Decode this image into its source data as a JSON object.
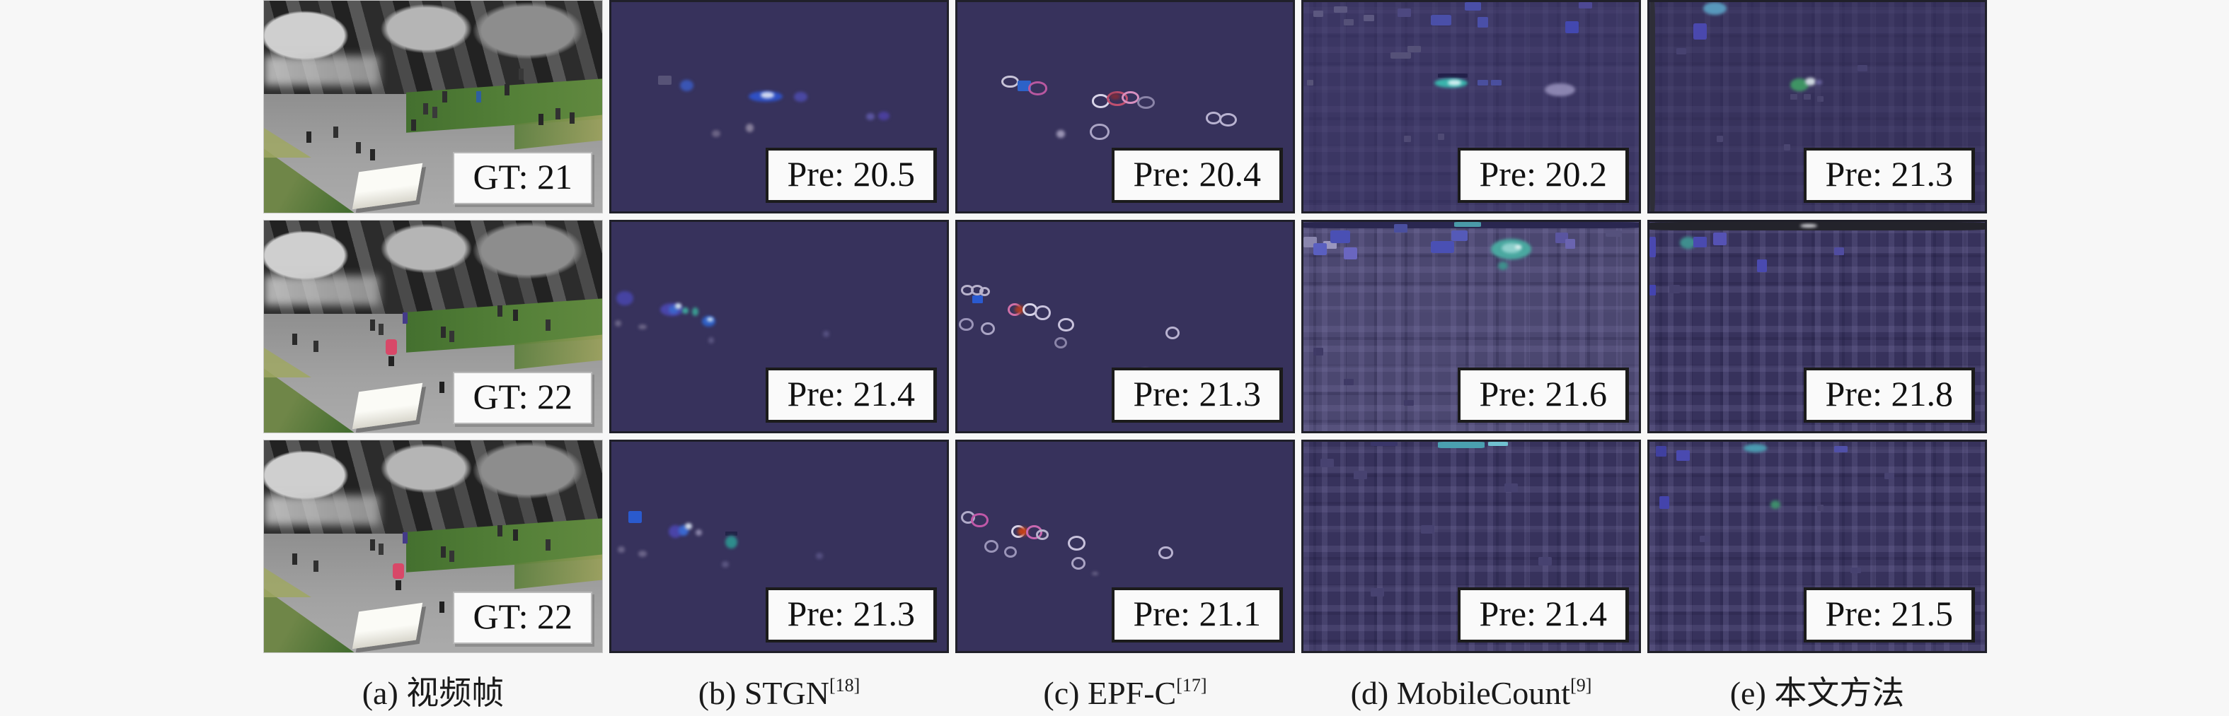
{
  "columns": [
    {
      "id": "a",
      "caption": "(a) 视频帧",
      "ref": ""
    },
    {
      "id": "b",
      "caption": "(b) STGN",
      "ref": "[18]"
    },
    {
      "id": "c",
      "caption": "(c) EPF-C",
      "ref": "[17]"
    },
    {
      "id": "d",
      "caption": "(d) MobileCount",
      "ref": "[9]"
    },
    {
      "id": "e",
      "caption": "(e) 本文方法",
      "ref": ""
    }
  ],
  "rows": [
    {
      "labels": {
        "a": "GT: 21",
        "b": "Pre: 20.5",
        "c": "Pre: 20.4",
        "d": "Pre: 20.2",
        "e": "Pre: 21.3"
      }
    },
    {
      "labels": {
        "a": "GT: 22",
        "b": "Pre: 21.4",
        "c": "Pre: 21.3",
        "d": "Pre: 21.6",
        "e": "Pre: 21.8"
      }
    },
    {
      "labels": {
        "a": "GT: 22",
        "b": "Pre: 21.3",
        "c": "Pre: 21.1",
        "d": "Pre: 21.4",
        "e": "Pre: 21.5"
      }
    }
  ],
  "colors": {
    "page_bg": "#f7f7f7",
    "density_bg": "#37325c",
    "density_bg_light": "#4b4770",
    "label_box_bg": "#fafafa",
    "label_text": "#111111",
    "caption_text": "#1a1a1a"
  },
  "blobs": {
    "b1": [
      [
        14,
        35,
        4,
        4.5,
        "#575377",
        "k"
      ],
      [
        20.5,
        37,
        4,
        5.5,
        "#3a55b4",
        "b"
      ],
      [
        41,
        42.5,
        10,
        5,
        "#2f50c4",
        "b"
      ],
      [
        44.5,
        43,
        4,
        3,
        "#d0d8f0",
        "b"
      ],
      [
        54.5,
        43,
        4,
        4.5,
        "#4a48a2",
        "b"
      ],
      [
        30,
        61,
        2.5,
        3.5,
        "#6b6384",
        "b"
      ],
      [
        40,
        58,
        2.5,
        4,
        "#867e9a",
        "b"
      ],
      [
        76,
        53,
        2.5,
        3.5,
        "#5a55a0",
        "b"
      ],
      [
        79.5,
        52.5,
        3.5,
        4,
        "#4a3f9c",
        "b"
      ]
    ],
    "c1": [
      [
        13,
        35,
        4,
        4,
        "#c8c4d8",
        "r"
      ],
      [
        18,
        37.5,
        4,
        5,
        "#2d62c8",
        "k"
      ],
      [
        21,
        38,
        4.5,
        4.5,
        "#b858a0",
        "r"
      ],
      [
        40,
        44,
        4,
        4.5,
        "#d8d4e8",
        "r"
      ],
      [
        44.5,
        42.5,
        5,
        5,
        "#c05070",
        "r"
      ],
      [
        45.5,
        43.5,
        3,
        3,
        "#7c2c3c",
        "b"
      ],
      [
        49,
        42.5,
        4,
        4,
        "#d890c0",
        "r"
      ],
      [
        53.5,
        45,
        4,
        4,
        "#8a84a8",
        "r"
      ],
      [
        29.5,
        61,
        2.5,
        4,
        "#9a94b4",
        "b"
      ],
      [
        39.5,
        58,
        4.5,
        6,
        "#aaa4c4",
        "r"
      ],
      [
        74,
        52.5,
        3.5,
        4,
        "#b8b2d0",
        "r"
      ],
      [
        78,
        53,
        4,
        4.5,
        "#b8b2d0",
        "r"
      ]
    ],
    "d1": [
      [
        3,
        4,
        3,
        3,
        "#5c5880",
        "k"
      ],
      [
        9,
        2,
        4,
        3,
        "#5c5880",
        "k"
      ],
      [
        12,
        8,
        3,
        3,
        "#555178",
        "k"
      ],
      [
        18,
        6,
        3,
        3,
        "#5c5880",
        "k"
      ],
      [
        28,
        3,
        4,
        4,
        "#4d4880",
        "k"
      ],
      [
        38,
        6,
        6,
        5,
        "#4a4fa8",
        "k"
      ],
      [
        48,
        0,
        5,
        4,
        "#4a4fa8",
        "k"
      ],
      [
        52,
        7,
        3,
        5,
        "#4a4fa8",
        "k"
      ],
      [
        78,
        9,
        4,
        6,
        "#4348b0",
        "k"
      ],
      [
        82,
        0,
        4,
        3,
        "#4d4894",
        "k"
      ],
      [
        26,
        24,
        6,
        3,
        "#555178",
        "k"
      ],
      [
        31,
        21,
        4,
        3,
        "#555178",
        "k"
      ],
      [
        40,
        34,
        9,
        2,
        "#23204a",
        "k"
      ],
      [
        39,
        36.5,
        10,
        4.5,
        "#3ab4ac",
        "b"
      ],
      [
        43,
        37,
        4,
        3,
        "#cfeef0",
        "b"
      ],
      [
        52,
        37,
        3,
        3,
        "#4a4f9e",
        "k"
      ],
      [
        56,
        37,
        3,
        3,
        "#4a4f9e",
        "k"
      ],
      [
        72,
        39,
        9,
        6,
        "#8b85b0",
        "b"
      ],
      [
        1,
        37,
        2,
        3,
        "#575378",
        "k"
      ],
      [
        30,
        64,
        2,
        3,
        "#4f4a74",
        "k"
      ],
      [
        40,
        63,
        2,
        3,
        "#4f4a74",
        "k"
      ]
    ],
    "e1": [
      [
        0,
        0,
        1.6,
        100,
        "#2e2e38",
        "k"
      ],
      [
        16,
        0,
        7,
        6,
        "#5898bc",
        "b"
      ],
      [
        13,
        10,
        4,
        8,
        "#4a48ae",
        "k"
      ],
      [
        42,
        36.5,
        5.5,
        6,
        "#3f9464",
        "b"
      ],
      [
        46.5,
        36,
        3,
        4,
        "#cfd8e0",
        "b"
      ],
      [
        49.5,
        37,
        2,
        2.5,
        "#6a64a0",
        "b"
      ],
      [
        42,
        44,
        2,
        2.5,
        "#49446e",
        "k"
      ],
      [
        46,
        44,
        2,
        2.5,
        "#49446e",
        "k"
      ],
      [
        50,
        45,
        2,
        2.5,
        "#49446e",
        "k"
      ],
      [
        8,
        22,
        3,
        3,
        "#474270",
        "k"
      ],
      [
        62,
        30,
        3,
        3,
        "#474270",
        "k"
      ],
      [
        20,
        64,
        2,
        3,
        "#4a4570",
        "k"
      ],
      [
        40,
        68,
        2,
        3,
        "#4a4570",
        "k"
      ]
    ],
    "b2": [
      [
        1.5,
        33,
        5,
        7,
        "#4643a2",
        "b"
      ],
      [
        14.5,
        39,
        7,
        6,
        "#4a46aa",
        "b"
      ],
      [
        17,
        40,
        3,
        4,
        "#3c66cc",
        "b"
      ],
      [
        19,
        39,
        1.8,
        2.4,
        "#cfe0e8",
        "b"
      ],
      [
        21,
        41,
        2,
        3,
        "#3fa89c",
        "b"
      ],
      [
        24,
        41,
        2,
        4,
        "#3a9a90",
        "b"
      ],
      [
        27,
        45,
        4,
        5,
        "#2f60c6",
        "b"
      ],
      [
        28.5,
        45.5,
        1.8,
        2.2,
        "#cfe0f0",
        "b"
      ],
      [
        1,
        47,
        2,
        3,
        "#6a6486",
        "b"
      ],
      [
        8,
        49,
        2.5,
        2.5,
        "#6a6486",
        "b"
      ],
      [
        29,
        55,
        1.6,
        3,
        "#5a5580",
        "b"
      ],
      [
        63,
        52,
        2,
        3,
        "#555080",
        "b"
      ]
    ],
    "c2": [
      [
        1,
        30,
        2.5,
        3,
        "#b8b2cc",
        "r"
      ],
      [
        4,
        30,
        2.5,
        3,
        "#b8b2cc",
        "r"
      ],
      [
        6.5,
        31,
        2,
        2.5,
        "#b8b2cc",
        "r"
      ],
      [
        4.5,
        35,
        3,
        4,
        "#2a5ad0",
        "k"
      ],
      [
        15,
        39,
        3,
        4,
        "#d070a8",
        "r"
      ],
      [
        17,
        40,
        3,
        4,
        "#a83c28",
        "b"
      ],
      [
        19.5,
        39,
        3,
        4,
        "#d8d4e8",
        "r"
      ],
      [
        23,
        40,
        3.5,
        5,
        "#c8c2dc",
        "r"
      ],
      [
        30,
        46,
        3.5,
        4.5,
        "#c8c2dc",
        "r"
      ],
      [
        0.5,
        46,
        3,
        4,
        "#9a94b8",
        "r"
      ],
      [
        7,
        48,
        3,
        4,
        "#aaa4c4",
        "r"
      ],
      [
        29,
        55,
        2.5,
        3.5,
        "#8a84a8",
        "r"
      ],
      [
        62,
        50,
        3,
        4,
        "#b8b2d0",
        "r"
      ],
      [
        55,
        70,
        2,
        2,
        "#6a6488",
        "b"
      ]
    ],
    "d2": [
      [
        0,
        0,
        100,
        3,
        "#2a2750",
        "k"
      ],
      [
        0,
        7,
        4,
        5,
        "#8a86ae",
        "k"
      ],
      [
        6,
        9,
        4,
        4,
        "#9a96be",
        "k"
      ],
      [
        8,
        4,
        6,
        6,
        "#4a50b4",
        "k"
      ],
      [
        3,
        10,
        4,
        6,
        "#5a5fc0",
        "k"
      ],
      [
        12,
        12,
        4,
        6,
        "#6a66c0",
        "k"
      ],
      [
        27,
        1,
        4,
        4,
        "#4a4f9e",
        "k"
      ],
      [
        38,
        9,
        7,
        6,
        "#4a50b4",
        "k"
      ],
      [
        44,
        4,
        5,
        5,
        "#555ab8",
        "k"
      ],
      [
        45,
        0,
        8,
        2.5,
        "#4a9aa8",
        "k"
      ],
      [
        56,
        8,
        12,
        10,
        "#4aa8a0",
        "b"
      ],
      [
        59,
        10,
        6,
        5,
        "#8fd0cc",
        "b"
      ],
      [
        63,
        11,
        2,
        2,
        "#e8f4f4",
        "b"
      ],
      [
        58,
        19,
        3,
        4,
        "#3f8e8c",
        "b"
      ],
      [
        75,
        5,
        4,
        5,
        "#5a55a0",
        "k"
      ],
      [
        78,
        8,
        3,
        5,
        "#6a64b0",
        "k"
      ],
      [
        90,
        4,
        5,
        3,
        "#55517c",
        "k"
      ],
      [
        3,
        60,
        3,
        4,
        "#3f3a66",
        "k"
      ],
      [
        12,
        75,
        3,
        3,
        "#3f3a66",
        "k"
      ],
      [
        30,
        85,
        3,
        3,
        "#3f3a66",
        "k"
      ]
    ],
    "e2": [
      [
        0,
        0,
        100,
        4,
        "#23232b",
        "k"
      ],
      [
        9,
        7,
        5,
        6,
        "#3f8e8e",
        "b"
      ],
      [
        13,
        7,
        4,
        5,
        "#4a4ab0",
        "k"
      ],
      [
        19,
        5,
        4,
        6,
        "#5552b4",
        "k"
      ],
      [
        0,
        7,
        2,
        10,
        "#4a48b0",
        "k"
      ],
      [
        45,
        1,
        5,
        1.8,
        "#d8d8dc",
        "b"
      ],
      [
        32,
        18,
        3,
        6,
        "#4a4ab0",
        "k"
      ],
      [
        55,
        12,
        3,
        4,
        "#504ca0",
        "k"
      ],
      [
        0,
        30,
        2,
        5,
        "#4444b0",
        "k"
      ],
      [
        6,
        30,
        3,
        4,
        "#45406c",
        "k"
      ]
    ],
    "b3": [
      [
        5,
        33,
        4,
        6,
        "#2a5ace",
        "k"
      ],
      [
        17,
        40,
        4,
        6,
        "#4a44a8",
        "b"
      ],
      [
        20,
        40,
        3,
        5,
        "#3a68d0",
        "b"
      ],
      [
        22,
        39,
        2,
        3,
        "#d0d8e8",
        "b"
      ],
      [
        25,
        42,
        2,
        3,
        "#8a84a8",
        "b"
      ],
      [
        34,
        43,
        3.5,
        2,
        "#222448",
        "k"
      ],
      [
        34,
        45,
        3.5,
        6,
        "#2e8c8c",
        "b"
      ],
      [
        2,
        50,
        2,
        3,
        "#6a6488",
        "b"
      ],
      [
        8,
        52,
        2.5,
        3,
        "#6a6488",
        "b"
      ],
      [
        33,
        57,
        2,
        3,
        "#5a5580",
        "b"
      ],
      [
        61,
        53,
        2,
        3,
        "#555080",
        "b"
      ]
    ],
    "c3": [
      [
        1,
        33,
        3,
        4,
        "#b0aac8",
        "r"
      ],
      [
        4,
        34,
        4,
        5,
        "#c058a8",
        "r"
      ],
      [
        16,
        40,
        3,
        4,
        "#d8d4e8",
        "r"
      ],
      [
        18,
        41,
        3,
        4,
        "#c04018",
        "b"
      ],
      [
        20.5,
        40,
        3.5,
        4.5,
        "#c868b0",
        "r"
      ],
      [
        23.5,
        42,
        2.5,
        3,
        "#b8b2cc",
        "r"
      ],
      [
        33,
        45,
        4,
        5,
        "#c8c2dc",
        "r"
      ],
      [
        34,
        55,
        3,
        4,
        "#aaa4c4",
        "r"
      ],
      [
        8,
        47,
        3,
        4,
        "#9a94b8",
        "r"
      ],
      [
        14,
        50,
        2.5,
        3.5,
        "#9a94b8",
        "r"
      ],
      [
        60,
        50,
        3,
        4,
        "#b8b2d0",
        "r"
      ],
      [
        40,
        62,
        2,
        2,
        "#6a6488",
        "b"
      ]
    ],
    "d3": [
      [
        40,
        0,
        14,
        3,
        "#4aa0b0",
        "k"
      ],
      [
        55,
        0,
        6,
        2,
        "#70c0d0",
        "k"
      ],
      [
        20,
        0,
        8,
        2,
        "#3a366a",
        "k"
      ],
      [
        5,
        8,
        4,
        4,
        "#474270",
        "k"
      ],
      [
        15,
        14,
        4,
        4,
        "#474270",
        "k"
      ],
      [
        60,
        20,
        4,
        4,
        "#474270",
        "k"
      ],
      [
        35,
        40,
        4,
        4,
        "#474270",
        "k"
      ],
      [
        70,
        55,
        4,
        4,
        "#474270",
        "k"
      ],
      [
        20,
        70,
        4,
        4,
        "#474270",
        "k"
      ]
    ],
    "e3": [
      [
        28,
        1,
        7,
        4,
        "#4a9ab0",
        "b"
      ],
      [
        2,
        2,
        3,
        5,
        "#4040a0",
        "k"
      ],
      [
        8,
        4,
        4,
        5,
        "#4a4ab0",
        "k"
      ],
      [
        55,
        2,
        4,
        3,
        "#5050a8",
        "k"
      ],
      [
        3,
        26,
        3,
        6,
        "#4444ac",
        "k"
      ],
      [
        36,
        28,
        3,
        4,
        "#3f8c6c",
        "b"
      ],
      [
        50,
        30,
        2,
        3,
        "#49446e",
        "k"
      ],
      [
        70,
        15,
        3,
        3,
        "#474270",
        "k"
      ],
      [
        15,
        45,
        3,
        3,
        "#474270",
        "k"
      ],
      [
        60,
        60,
        3,
        3,
        "#474270",
        "k"
      ]
    ]
  }
}
